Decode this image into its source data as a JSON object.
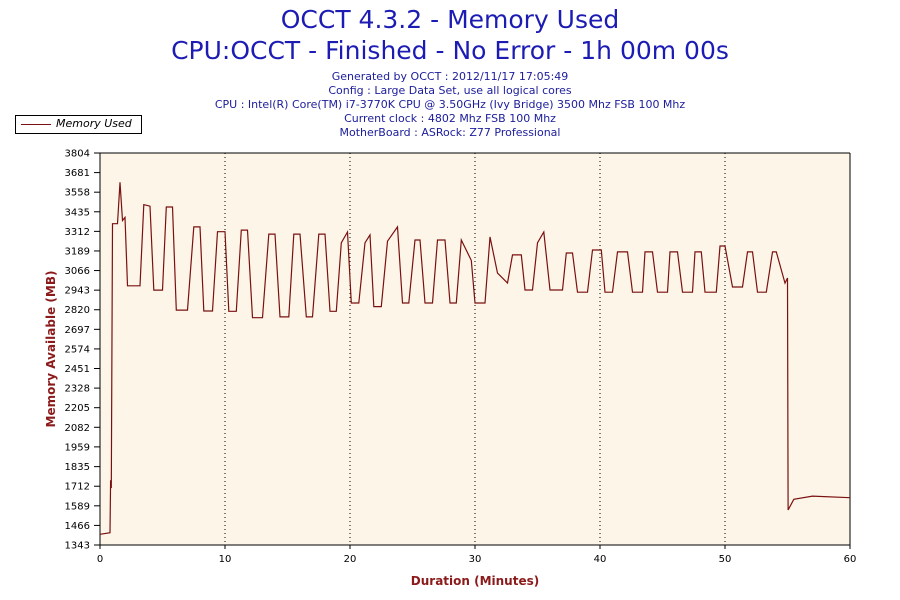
{
  "chart_data": {
    "type": "line",
    "title": "OCCT 4.3.2 - Memory Used",
    "subtitle": "CPU:OCCT - Finished - No Error - 1h 00m 00s",
    "info": [
      "Generated by OCCT : 2012/11/17 17:05:49",
      "Config : Large Data Set, use all logical cores",
      "CPU : Intel(R) Core(TM) i7-3770K CPU @ 3.50GHz (Ivy Bridge) 3500 Mhz FSB 100 Mhz",
      "Current clock : 4802 Mhz FSB 100 Mhz",
      "MotherBoard : ASRock: Z77 Professional"
    ],
    "xlabel": "Duration (Minutes)",
    "ylabel": "Memory Available (MB)",
    "xlim": [
      0,
      60
    ],
    "ylim": [
      1343,
      3804
    ],
    "xticks": [
      "0",
      "10",
      "20",
      "30",
      "40",
      "50",
      "60"
    ],
    "yticks": [
      "1343",
      "1466",
      "1589",
      "1712",
      "1835",
      "1959",
      "2082",
      "2205",
      "2328",
      "2451",
      "2574",
      "2697",
      "2820",
      "2943",
      "3066",
      "3189",
      "3312",
      "3435",
      "3558",
      "3681",
      "3804"
    ],
    "grid": "vertical-dotted",
    "legend": {
      "placement": "top-left",
      "entries": [
        "Memory Used"
      ]
    },
    "series": [
      {
        "name": "Memory Used",
        "color": "#7a1010",
        "points": [
          [
            0,
            1410
          ],
          [
            0.8,
            1420
          ],
          [
            0.85,
            1750
          ],
          [
            0.9,
            1700
          ],
          [
            1.0,
            3360
          ],
          [
            1.4,
            3360
          ],
          [
            1.6,
            3620
          ],
          [
            1.8,
            3380
          ],
          [
            2.0,
            3400
          ],
          [
            2.2,
            2970
          ],
          [
            3.2,
            2970
          ],
          [
            3.5,
            3480
          ],
          [
            4.0,
            3470
          ],
          [
            4.3,
            2943
          ],
          [
            5.0,
            2943
          ],
          [
            5.3,
            3465
          ],
          [
            5.8,
            3465
          ],
          [
            6.1,
            2818
          ],
          [
            7.0,
            2818
          ],
          [
            7.5,
            3340
          ],
          [
            8.0,
            3340
          ],
          [
            8.3,
            2812
          ],
          [
            9.0,
            2812
          ],
          [
            9.4,
            3310
          ],
          [
            10.0,
            3310
          ],
          [
            10.3,
            2810
          ],
          [
            10.9,
            2810
          ],
          [
            11.3,
            3320
          ],
          [
            11.8,
            3320
          ],
          [
            12.2,
            2770
          ],
          [
            13.0,
            2770
          ],
          [
            13.5,
            3295
          ],
          [
            14.0,
            3295
          ],
          [
            14.4,
            2775
          ],
          [
            15.1,
            2775
          ],
          [
            15.5,
            3295
          ],
          [
            16.0,
            3295
          ],
          [
            16.5,
            2775
          ],
          [
            17.0,
            2775
          ],
          [
            17.5,
            3295
          ],
          [
            18.0,
            3295
          ],
          [
            18.4,
            2810
          ],
          [
            18.9,
            2810
          ],
          [
            19.3,
            3240
          ],
          [
            19.8,
            3308
          ],
          [
            20.1,
            2862
          ],
          [
            20.7,
            2862
          ],
          [
            21.2,
            3240
          ],
          [
            21.6,
            3290
          ],
          [
            21.9,
            2840
          ],
          [
            22.5,
            2840
          ],
          [
            23.0,
            3250
          ],
          [
            23.8,
            3340
          ],
          [
            24.2,
            2862
          ],
          [
            24.7,
            2862
          ],
          [
            25.2,
            3258
          ],
          [
            25.6,
            3258
          ],
          [
            26.0,
            2862
          ],
          [
            26.6,
            2862
          ],
          [
            27.0,
            3258
          ],
          [
            27.6,
            3258
          ],
          [
            28.0,
            2862
          ],
          [
            28.5,
            2862
          ],
          [
            28.9,
            3258
          ],
          [
            29.7,
            3130
          ],
          [
            30.0,
            2862
          ],
          [
            30.8,
            2862
          ],
          [
            31.2,
            3277
          ],
          [
            31.8,
            3050
          ],
          [
            32.6,
            2988
          ],
          [
            33.0,
            3164
          ],
          [
            33.7,
            3164
          ],
          [
            34.0,
            2944
          ],
          [
            34.6,
            2944
          ],
          [
            35.0,
            3240
          ],
          [
            35.5,
            3308
          ],
          [
            36.0,
            2944
          ],
          [
            37.0,
            2944
          ],
          [
            37.3,
            3176
          ],
          [
            37.8,
            3176
          ],
          [
            38.2,
            2930
          ],
          [
            39.0,
            2930
          ],
          [
            39.4,
            3195
          ],
          [
            40.1,
            3195
          ],
          [
            40.4,
            2930
          ],
          [
            41.0,
            2930
          ],
          [
            41.4,
            3183
          ],
          [
            42.2,
            3183
          ],
          [
            42.6,
            2930
          ],
          [
            43.4,
            2930
          ],
          [
            43.6,
            3183
          ],
          [
            44.2,
            3183
          ],
          [
            44.6,
            2930
          ],
          [
            45.4,
            2930
          ],
          [
            45.6,
            3183
          ],
          [
            46.2,
            3183
          ],
          [
            46.6,
            2930
          ],
          [
            47.4,
            2930
          ],
          [
            47.6,
            3183
          ],
          [
            48.1,
            3183
          ],
          [
            48.4,
            2930
          ],
          [
            49.3,
            2930
          ],
          [
            49.6,
            3220
          ],
          [
            50.0,
            3220
          ],
          [
            50.6,
            2963
          ],
          [
            51.4,
            2963
          ],
          [
            51.8,
            3183
          ],
          [
            52.2,
            3183
          ],
          [
            52.6,
            2930
          ],
          [
            53.3,
            2930
          ],
          [
            53.8,
            3183
          ],
          [
            54.1,
            3183
          ],
          [
            54.8,
            2987
          ],
          [
            55.0,
            3019
          ],
          [
            55.05,
            1563
          ],
          [
            55.5,
            1630
          ],
          [
            57,
            1650
          ],
          [
            60,
            1640
          ]
        ]
      }
    ]
  }
}
